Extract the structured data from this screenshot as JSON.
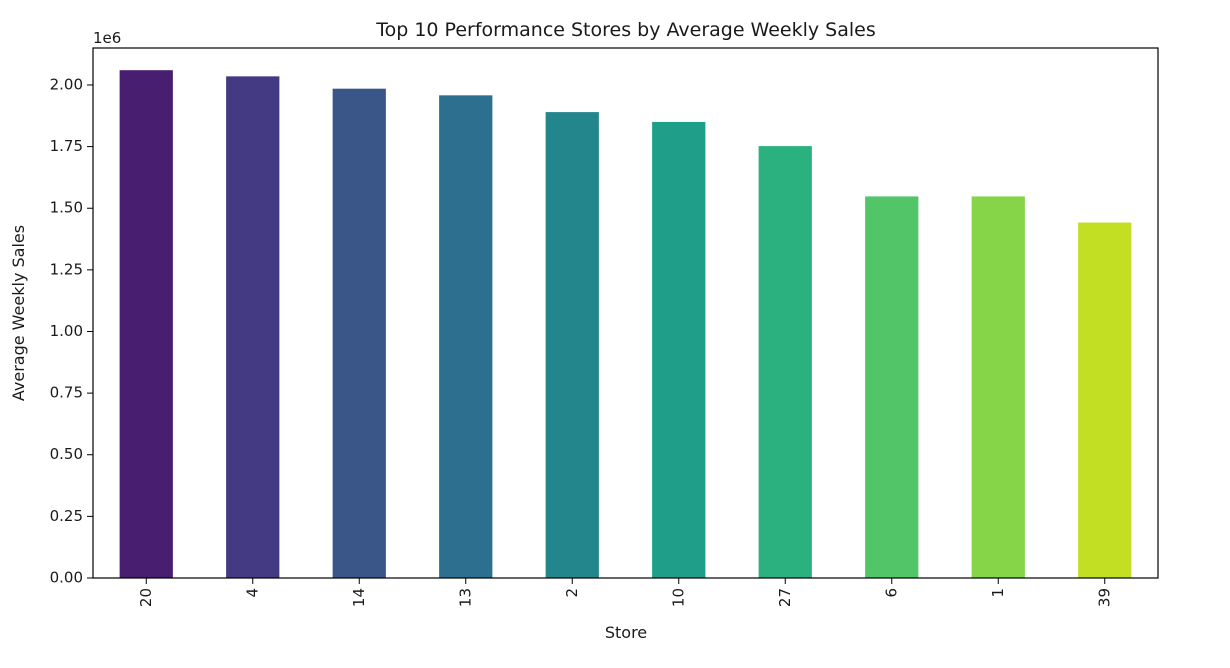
{
  "chart_data": {
    "type": "bar",
    "title": "Top 10 Performance Stores by Average Weekly Sales",
    "xlabel": "Store",
    "ylabel": "Average Weekly Sales",
    "y_offset_label": "1e6",
    "categories": [
      "20",
      "4",
      "14",
      "13",
      "2",
      "10",
      "27",
      "6",
      "1",
      "39"
    ],
    "values": [
      2060000,
      2035000,
      1985000,
      1958000,
      1890000,
      1850000,
      1752000,
      1548000,
      1548000,
      1442000
    ],
    "colors": [
      "#481f70",
      "#443983",
      "#3a5588",
      "#2d6f8e",
      "#23868d",
      "#1f9e89",
      "#2bb07f",
      "#52c569",
      "#86d549",
      "#c2df23"
    ],
    "ylim": [
      0,
      2150000
    ],
    "yticks": [
      0,
      250000,
      500000,
      750000,
      1000000,
      1250000,
      1500000,
      1750000,
      2000000
    ],
    "ytick_labels": [
      "0.00",
      "0.25",
      "0.50",
      "0.75",
      "1.00",
      "1.25",
      "1.50",
      "1.75",
      "2.00"
    ],
    "grid": false,
    "legend": "none"
  }
}
